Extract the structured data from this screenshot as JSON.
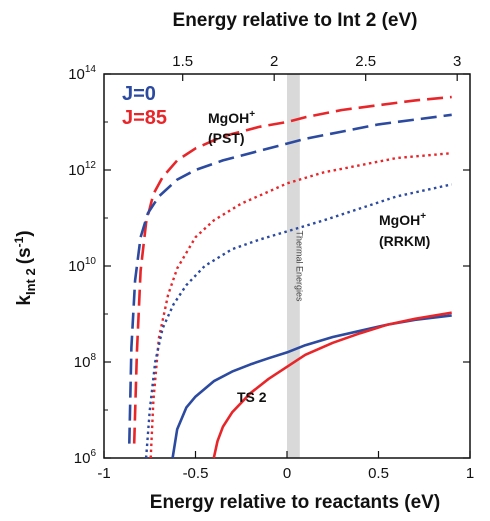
{
  "chart_data": {
    "type": "line",
    "xlabel": "Energy relative to reactants (eV)",
    "x2label": "Energy relative to Int 2 (eV)",
    "ylabel_main": "k",
    "ylabel_sub": "Int 2",
    "ylabel_unit": "(s",
    "ylabel_unit_exp": "-1",
    "ylabel_unit_end": ")",
    "xlim": [
      -1,
      1
    ],
    "ylim_log10": [
      6,
      14
    ],
    "yscale": "log",
    "x_ticks": [
      {
        "value": -1,
        "label": "-1"
      },
      {
        "value": -0.5,
        "label": "-0.5"
      },
      {
        "value": 0,
        "label": "0"
      },
      {
        "value": 0.5,
        "label": "0.5"
      },
      {
        "value": 1,
        "label": "1"
      }
    ],
    "x2_ticks": [
      {
        "value": -0.57,
        "label": "1.5"
      },
      {
        "value": -0.07,
        "label": "2"
      },
      {
        "value": 0.43,
        "label": "2.5"
      },
      {
        "value": 0.93,
        "label": "3"
      }
    ],
    "y_ticks": [
      {
        "value": 6,
        "base": "10",
        "exp": "6"
      },
      {
        "value": 8,
        "base": "10",
        "exp": "8"
      },
      {
        "value": 10,
        "base": "10",
        "exp": "10"
      },
      {
        "value": 12,
        "base": "10",
        "exp": "12"
      },
      {
        "value": 14,
        "base": "10",
        "exp": "14"
      }
    ],
    "legend": [
      {
        "label": "J=0",
        "color": "#2b4aa0"
      },
      {
        "label": "J=85",
        "color": "#e8262a"
      }
    ],
    "annotations": {
      "pst_line1": "MgOH",
      "pst_sup": "+",
      "pst_line2": "(PST)",
      "rrkm_line1": "MgOH",
      "rrkm_sup": "+",
      "rrkm_line2": "(RRKM)",
      "ts2": "TS 2",
      "thermal": "Thermal Energies"
    },
    "thermal_band": [
      0.0,
      0.07
    ],
    "series": [
      {
        "color": "#e8262a",
        "dash": "dashed",
        "x": [
          -0.835,
          -0.82,
          -0.8,
          -0.77,
          -0.73,
          -0.68,
          -0.6,
          -0.5,
          -0.35,
          -0.15,
          0.0,
          0.1,
          0.3,
          0.5,
          0.7,
          0.9
        ],
        "y": [
          6.3,
          8.2,
          9.9,
          10.9,
          11.5,
          11.85,
          12.2,
          12.45,
          12.7,
          12.9,
          13.0,
          13.1,
          13.25,
          13.35,
          13.45,
          13.52
        ]
      },
      {
        "color": "#2b4aa0",
        "dash": "dashed",
        "x": [
          -0.862,
          -0.85,
          -0.83,
          -0.8,
          -0.76,
          -0.7,
          -0.6,
          -0.5,
          -0.35,
          -0.15,
          0.0,
          0.1,
          0.3,
          0.5,
          0.7,
          0.9
        ],
        "y": [
          6.3,
          8.3,
          9.7,
          10.6,
          11.1,
          11.45,
          11.8,
          12.0,
          12.2,
          12.4,
          12.55,
          12.65,
          12.8,
          12.95,
          13.05,
          13.15
        ]
      },
      {
        "color": "#e8262a",
        "dash": "dotted",
        "x": [
          -0.745,
          -0.73,
          -0.7,
          -0.65,
          -0.6,
          -0.5,
          -0.4,
          -0.25,
          -0.1,
          0.0,
          0.2,
          0.4,
          0.6,
          0.9
        ],
        "y": [
          6.0,
          7.2,
          8.5,
          9.4,
          9.95,
          10.6,
          10.95,
          11.3,
          11.55,
          11.72,
          11.95,
          12.1,
          12.25,
          12.35
        ]
      },
      {
        "color": "#2b4aa0",
        "dash": "dotted",
        "x": [
          -0.77,
          -0.75,
          -0.72,
          -0.68,
          -0.62,
          -0.55,
          -0.45,
          -0.3,
          -0.15,
          0.0,
          0.2,
          0.4,
          0.6,
          0.9
        ],
        "y": [
          6.0,
          7.0,
          8.0,
          8.7,
          9.2,
          9.6,
          10.0,
          10.35,
          10.55,
          10.72,
          10.95,
          11.2,
          11.45,
          11.7
        ]
      },
      {
        "color": "#2b4aa0",
        "dash": "solid",
        "x": [
          -0.625,
          -0.6,
          -0.55,
          -0.5,
          -0.4,
          -0.3,
          -0.2,
          -0.1,
          0.0,
          0.1,
          0.25,
          0.4,
          0.55,
          0.7,
          0.9
        ],
        "y": [
          6.0,
          6.6,
          7.05,
          7.28,
          7.6,
          7.8,
          7.95,
          8.08,
          8.2,
          8.35,
          8.52,
          8.65,
          8.78,
          8.88,
          8.97
        ]
      },
      {
        "color": "#e8262a",
        "dash": "solid",
        "x": [
          -0.4,
          -0.38,
          -0.35,
          -0.3,
          -0.2,
          -0.1,
          0.0,
          0.1,
          0.25,
          0.4,
          0.55,
          0.7,
          0.9
        ],
        "y": [
          6.0,
          6.35,
          6.65,
          6.95,
          7.35,
          7.65,
          7.9,
          8.15,
          8.4,
          8.6,
          8.78,
          8.9,
          9.03
        ]
      }
    ]
  }
}
